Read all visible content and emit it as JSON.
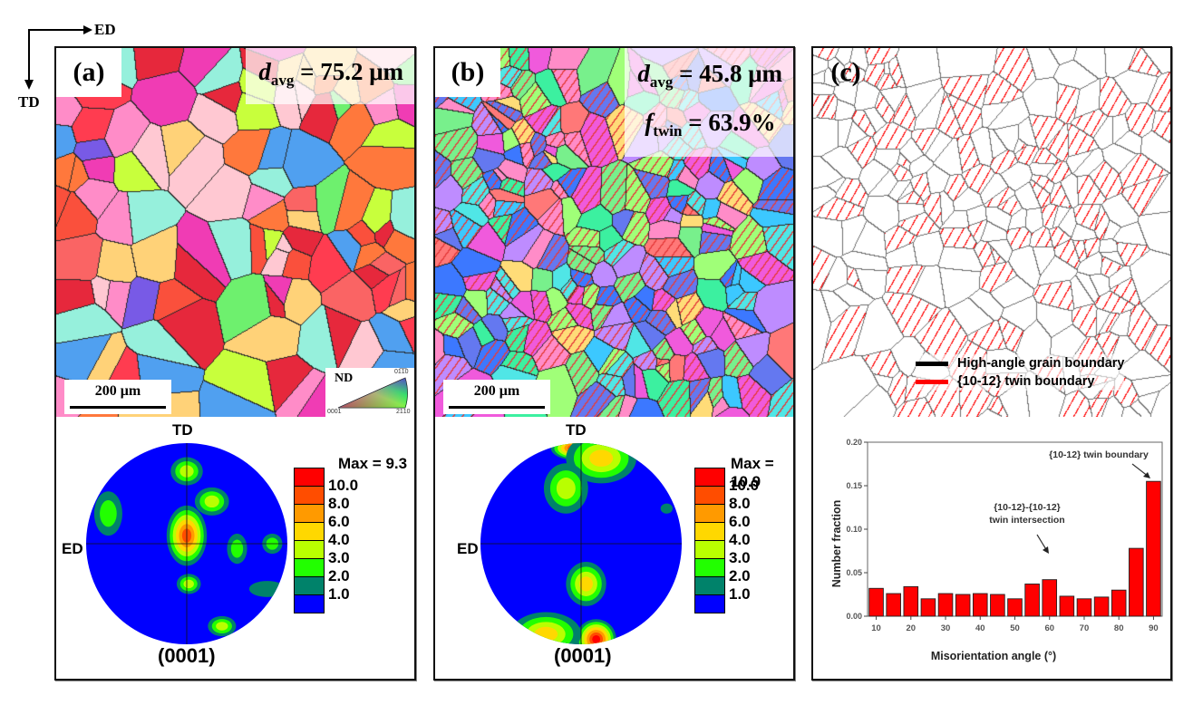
{
  "figure": {
    "orientation": {
      "horizontal_axis": "ED",
      "vertical_axis": "TD"
    },
    "panels": [
      {
        "id": "a",
        "tag": "(a)",
        "map_type": "IPF map",
        "stats": [
          {
            "symbol": "d",
            "subscript": "avg",
            "value": "= 75.2 μm"
          }
        ],
        "scalebar": "200 μm",
        "ipf_key": {
          "title": "ND",
          "corners": [
            "0001",
            "01̅1̅0",
            "̅2̅1̅10"
          ]
        },
        "pole_figure": {
          "plane": "(0001)",
          "top_label": "TD",
          "left_label": "ED",
          "max_label": "Max = 9.3",
          "levels": [
            "10.0",
            "8.0",
            "6.0",
            "4.0",
            "3.0",
            "2.0",
            "1.0"
          ],
          "level_colors": [
            "#ff0000",
            "#ff4d00",
            "#ff9a00",
            "#ffd800",
            "#b9ff00",
            "#22ff00",
            "#00826a",
            "#0000ff"
          ]
        }
      },
      {
        "id": "b",
        "tag": "(b)",
        "map_type": "IPF map",
        "stats": [
          {
            "symbol": "d",
            "subscript": "avg",
            "value": "= 45.8 μm"
          },
          {
            "symbol": "f",
            "subscript": "twin",
            "value": "= 63.9%"
          }
        ],
        "scalebar": "200 μm",
        "pole_figure": {
          "plane": "(0001)",
          "top_label": "TD",
          "left_label": "ED",
          "max_label": "Max = 10.9",
          "levels": [
            "10.0",
            "8.0",
            "6.0",
            "4.0",
            "3.0",
            "2.0",
            "1.0"
          ],
          "level_colors": [
            "#ff0000",
            "#ff4d00",
            "#ff9a00",
            "#ffd800",
            "#b9ff00",
            "#22ff00",
            "#00826a",
            "#0000ff"
          ]
        }
      },
      {
        "id": "c",
        "tag": "(c)",
        "map_type": "Boundary map",
        "legend": [
          {
            "label": "High-angle grain boundary",
            "color": "#000000"
          },
          {
            "label": "{10-12} twin boundary",
            "color": "#ff0000"
          }
        ]
      }
    ]
  },
  "chart_data": {
    "type": "bar",
    "title": "",
    "xlabel": "Misorientation angle (°)",
    "ylabel": "Number fraction",
    "x": [
      10,
      15,
      20,
      25,
      30,
      35,
      40,
      45,
      50,
      55,
      60,
      65,
      70,
      75,
      80,
      85,
      90
    ],
    "values": [
      0.032,
      0.026,
      0.034,
      0.02,
      0.026,
      0.025,
      0.026,
      0.025,
      0.02,
      0.037,
      0.042,
      0.023,
      0.02,
      0.022,
      0.03,
      0.078,
      0.155
    ],
    "xlim": [
      7.5,
      92.5
    ],
    "ylim": [
      0,
      0.2
    ],
    "xticks": [
      "10",
      "20",
      "30",
      "40",
      "50",
      "60",
      "70",
      "80",
      "90"
    ],
    "yticks": [
      "0.00",
      "0.05",
      "0.10",
      "0.15",
      "0.20"
    ],
    "bar_color": "#ff0000",
    "annotations": [
      {
        "text": [
          "{10-12} twin boundary"
        ],
        "target_x": 90
      },
      {
        "text": [
          "{10-12}-{10-12}",
          "twin intersection"
        ],
        "target_x": 60
      }
    ]
  }
}
